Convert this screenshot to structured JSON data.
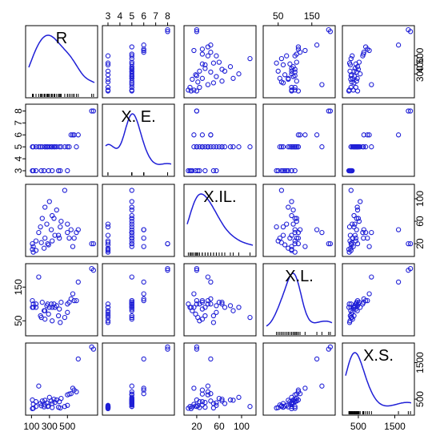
{
  "chart_data": {
    "type": "scatter",
    "variables": [
      "R",
      "X.E.",
      "X.IL.",
      "X.L.",
      "X.S."
    ],
    "ranges": [
      [
        70,
        800
      ],
      [
        2.8,
        8.3
      ],
      [
        3,
        120
      ],
      [
        15,
        210
      ],
      [
        150,
        1950
      ]
    ],
    "ticks": [
      [
        100,
        300,
        500
      ],
      [
        3,
        4,
        5,
        6,
        7,
        8
      ],
      [
        20,
        60,
        100
      ],
      [
        50,
        150
      ],
      [
        500,
        1500
      ]
    ],
    "axis_ticks": {
      "top": {
        "variables": [
          1,
          3
        ],
        "labels": [
          [
            3,
            4,
            5,
            6,
            7,
            8
          ],
          [
            50,
            150
          ]
        ]
      },
      "bottom": {
        "variables": [
          0,
          2,
          4
        ],
        "labels": [
          [
            100,
            300,
            500
          ],
          [
            20,
            60,
            100
          ],
          [
            500,
            1500
          ]
        ]
      },
      "left": {
        "variables": [
          1,
          3
        ],
        "labels": [
          [
            3,
            4,
            5,
            6,
            7,
            8
          ],
          [
            50,
            150
          ]
        ]
      },
      "right": {
        "variables": [
          0,
          2,
          4
        ],
        "labels": [
          [
            300,
            400,
            500
          ],
          [
            20,
            60,
            100
          ],
          [
            500,
            1500
          ]
        ]
      }
    },
    "right_axis_R_ticks": [
      300,
      400,
      500
    ],
    "observations": [
      {
        "R": 790,
        "E": 8,
        "IL": 20,
        "L": 200,
        "S": 1870
      },
      {
        "R": 770,
        "E": 8,
        "IL": 20,
        "L": 205,
        "S": 1930
      },
      {
        "R": 620,
        "E": 6,
        "IL": 45,
        "L": 165,
        "S": 1600
      },
      {
        "R": 560,
        "E": 6,
        "IL": 15,
        "L": 130,
        "S": 800
      },
      {
        "R": 540,
        "E": 6,
        "IL": 45,
        "L": 115,
        "S": 650
      },
      {
        "R": 575,
        "E": 6,
        "IL": 30,
        "L": 110,
        "S": 750
      },
      {
        "R": 600,
        "E": 5,
        "IL": 40,
        "L": 110,
        "S": 700
      },
      {
        "R": 500,
        "E": 5,
        "IL": 40,
        "L": 100,
        "S": 620
      },
      {
        "R": 520,
        "E": 5,
        "IL": 30,
        "L": 105,
        "S": 640
      },
      {
        "R": 470,
        "E": 5,
        "IL": 115,
        "L": 60,
        "S": 300
      },
      {
        "R": 350,
        "E": 5,
        "IL": 65,
        "L": 100,
        "S": 500
      },
      {
        "R": 430,
        "E": 5,
        "IL": 60,
        "L": 105,
        "S": 520
      },
      {
        "R": 380,
        "E": 5,
        "IL": 80,
        "L": 95,
        "S": 480
      },
      {
        "R": 300,
        "E": 5,
        "IL": 95,
        "L": 90,
        "S": 550
      },
      {
        "R": 250,
        "E": 5,
        "IL": 85,
        "L": 80,
        "S": 470
      },
      {
        "R": 220,
        "E": 5,
        "IL": 65,
        "L": 105,
        "S": 450
      },
      {
        "R": 270,
        "E": 5,
        "IL": 55,
        "L": 95,
        "S": 400
      },
      {
        "R": 200,
        "E": 5,
        "IL": 50,
        "L": 65,
        "S": 380
      },
      {
        "R": 150,
        "E": 5,
        "IL": 25,
        "L": 100,
        "S": 430
      },
      {
        "R": 120,
        "E": 5,
        "IL": 15,
        "L": 90,
        "S": 360
      },
      {
        "R": 110,
        "E": 5,
        "IL": 20,
        "L": 110,
        "S": 480
      },
      {
        "R": 180,
        "E": 5,
        "IL": 40,
        "L": 180,
        "S": 860
      },
      {
        "R": 320,
        "E": 5,
        "IL": 45,
        "L": 100,
        "S": 450
      },
      {
        "R": 360,
        "E": 5,
        "IL": 35,
        "L": 90,
        "S": 410
      },
      {
        "R": 410,
        "E": 5,
        "IL": 30,
        "L": 85,
        "S": 430
      },
      {
        "R": 250,
        "E": 5,
        "IL": 30,
        "L": 55,
        "S": 340
      },
      {
        "R": 280,
        "E": 5,
        "IL": 20,
        "L": 100,
        "S": 300
      },
      {
        "R": 330,
        "E": 5,
        "IL": 70,
        "L": 90,
        "S": 380
      },
      {
        "R": 150,
        "E": 3,
        "IL": 8,
        "L": 90,
        "S": 300
      },
      {
        "R": 240,
        "E": 3,
        "IL": 12,
        "L": 80,
        "S": 290
      },
      {
        "R": 290,
        "E": 3,
        "IL": 18,
        "L": 70,
        "S": 310
      },
      {
        "R": 330,
        "E": 3,
        "IL": 25,
        "L": 50,
        "S": 270
      },
      {
        "R": 400,
        "E": 3,
        "IL": 35,
        "L": 65,
        "S": 280
      },
      {
        "R": 420,
        "E": 3,
        "IL": 50,
        "L": 45,
        "S": 260
      },
      {
        "R": 110,
        "E": 3,
        "IL": 10,
        "L": 90,
        "S": 240
      },
      {
        "R": 120,
        "E": 3,
        "IL": 5,
        "L": 100,
        "S": 250
      },
      {
        "R": 210,
        "E": 3,
        "IL": 22,
        "L": 60,
        "S": 320
      },
      {
        "R": 500,
        "E": 3,
        "IL": 55,
        "L": 75,
        "S": 330
      }
    ],
    "diagonal_labels": [
      "R",
      "X. E.",
      "X.IL.",
      "X.L.",
      "X.S."
    ],
    "grid": false,
    "legend": "none"
  }
}
